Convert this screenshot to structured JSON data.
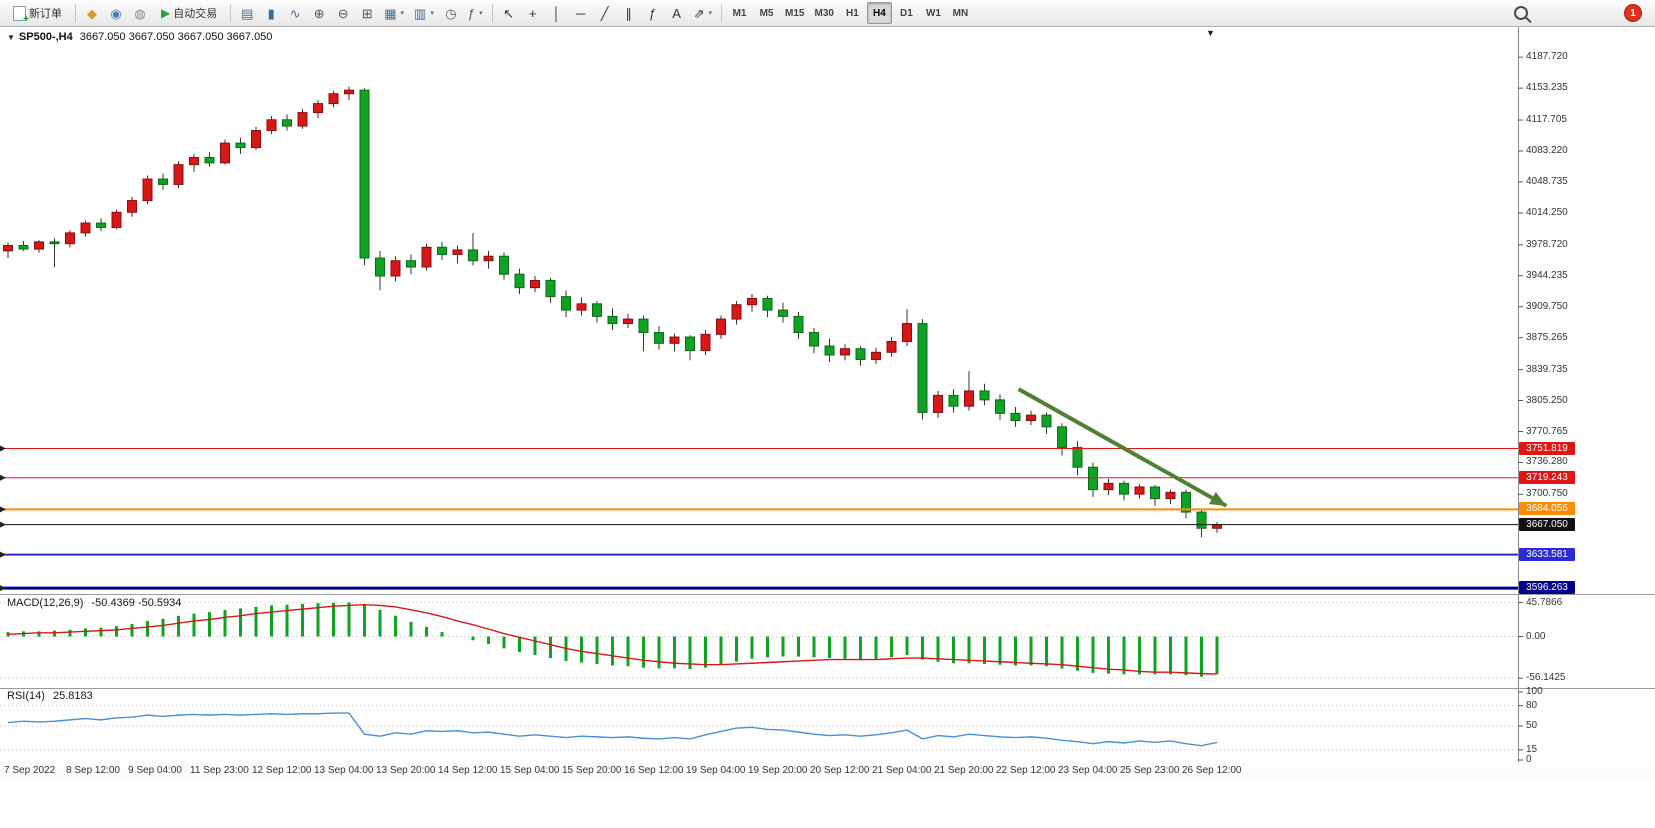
{
  "toolbar": {
    "new_order_label": "新订单",
    "autotrading_label": "自动交易",
    "notification_count": "1",
    "active_timeframe": "H4",
    "timeframes": [
      "M1",
      "M5",
      "M15",
      "M30",
      "H1",
      "H4",
      "D1",
      "W1",
      "MN"
    ],
    "market_icons": [
      {
        "name": "mql5-market-icon",
        "glyph": "◆",
        "color": "#d99c1e"
      },
      {
        "name": "community-icon",
        "glyph": "◉",
        "color": "#4a7ebb"
      },
      {
        "name": "news-icon",
        "glyph": "◍",
        "color": "#8a8a8a"
      }
    ],
    "chart_icons": [
      {
        "name": "bar-chart-icon",
        "glyph": "▤",
        "color": "#3c6e91"
      },
      {
        "name": "candlestick-chart-icon",
        "glyph": "▮",
        "color": "#3c6e91"
      },
      {
        "name": "line-chart-icon",
        "glyph": "∿",
        "color": "#3c6e91"
      },
      {
        "name": "zoom-in-icon",
        "glyph": "⊕",
        "color": "#555555"
      },
      {
        "name": "zoom-out-icon",
        "glyph": "⊖",
        "color": "#555555"
      },
      {
        "name": "tile-windows-icon",
        "glyph": "⊞",
        "color": "#555555"
      },
      {
        "name": "new-chart-icon",
        "glyph": "▦",
        "color": "#3c6e91",
        "caret": true
      },
      {
        "name": "chart-profiles-icon",
        "glyph": "▥",
        "color": "#3c6e91",
        "caret": true
      },
      {
        "name": "clock-icon",
        "glyph": "◷",
        "color": "#555555"
      },
      {
        "name": "indicator-list-icon",
        "glyph": "ƒ",
        "color": "#2e7d32",
        "caret": true
      }
    ],
    "tool_icons": [
      {
        "name": "cursor-icon",
        "glyph": "↖",
        "color": "#333333"
      },
      {
        "name": "crosshair-icon",
        "glyph": "+",
        "color": "#333333"
      },
      {
        "name": "vertical-line-icon",
        "glyph": "│",
        "color": "#333333"
      },
      {
        "name": "horizontal-line-icon",
        "glyph": "─",
        "color": "#333333"
      },
      {
        "name": "trendline-icon",
        "glyph": "╱",
        "color": "#333333"
      },
      {
        "name": "channel-icon",
        "glyph": "∥",
        "color": "#333333"
      },
      {
        "name": "fibonacci-icon",
        "glyph": "ƒ",
        "color": "#333333"
      },
      {
        "name": "text-label-icon",
        "glyph": "A",
        "color": "#333333"
      },
      {
        "name": "arrows-tool-icon",
        "glyph": "⇗",
        "color": "#333333",
        "caret": true
      }
    ]
  },
  "chart_data": {
    "type": "candlestick",
    "symbol": "SP500-",
    "timeframe": "H4",
    "header": {
      "symbol_label": "SP500-,H4",
      "ohlc_label": "3667.050 3667.050 3667.050 3667.050"
    },
    "up_color": "#d81717",
    "down_color": "#0fa224",
    "price_range": [
      3592,
      4218
    ],
    "y_axis_labels": [
      "4187.720",
      "4153.235",
      "4117.705",
      "4083.220",
      "4048.735",
      "4014.250",
      "3978.720",
      "3944.235",
      "3909.750",
      "3875.265",
      "3839.735",
      "3805.250",
      "3770.765",
      "3736.280",
      "3700.750"
    ],
    "hlines": [
      {
        "price": 3751.819,
        "label": "3751.819",
        "color": "#e01515",
        "width": 1
      },
      {
        "price": 3719.243,
        "label": "3719.243",
        "color": "#e01515",
        "width": 1
      },
      {
        "price": 3684.056,
        "label": "3684.056",
        "color": "#ff8c00",
        "width": 2
      },
      {
        "price": 3667.05,
        "label": "3667.050",
        "color": "#111111",
        "width": 1
      },
      {
        "price": 3633.581,
        "label": "3633.581",
        "color": "#2b2bd6",
        "width": 2
      },
      {
        "price": 3596.263,
        "label": "3596.263",
        "color": "#00008b",
        "width": 3
      }
    ],
    "arrow": {
      "t1": 65.2,
      "p1": 3818,
      "t2": 78.6,
      "p2": 3688,
      "color": "#4e7f32"
    },
    "candles": [
      [
        3972,
        3981,
        3964,
        3978
      ],
      [
        3978,
        3983,
        3972,
        3974
      ],
      [
        3974,
        3984,
        3970,
        3982
      ],
      [
        3982,
        3986,
        3954,
        3980
      ],
      [
        3980,
        3995,
        3976,
        3992
      ],
      [
        3992,
        4006,
        3988,
        4003
      ],
      [
        4003,
        4008,
        3994,
        3998
      ],
      [
        3998,
        4018,
        3996,
        4015
      ],
      [
        4015,
        4032,
        4010,
        4028
      ],
      [
        4028,
        4056,
        4024,
        4052
      ],
      [
        4052,
        4058,
        4040,
        4046
      ],
      [
        4046,
        4072,
        4042,
        4068
      ],
      [
        4068,
        4080,
        4060,
        4076
      ],
      [
        4076,
        4082,
        4066,
        4070
      ],
      [
        4070,
        4096,
        4068,
        4092
      ],
      [
        4092,
        4098,
        4080,
        4087
      ],
      [
        4087,
        4110,
        4084,
        4106
      ],
      [
        4106,
        4122,
        4102,
        4118
      ],
      [
        4118,
        4124,
        4106,
        4111
      ],
      [
        4111,
        4130,
        4108,
        4126
      ],
      [
        4126,
        4140,
        4120,
        4136
      ],
      [
        4136,
        4150,
        4132,
        4147
      ],
      [
        4147,
        4155,
        4140,
        4151
      ],
      [
        4151,
        4153,
        3956,
        3964
      ],
      [
        3964,
        3972,
        3928,
        3944
      ],
      [
        3944,
        3966,
        3938,
        3961
      ],
      [
        3961,
        3968,
        3946,
        3954
      ],
      [
        3954,
        3980,
        3950,
        3976
      ],
      [
        3976,
        3982,
        3962,
        3968
      ],
      [
        3968,
        3978,
        3958,
        3973
      ],
      [
        3973,
        3992,
        3956,
        3961
      ],
      [
        3961,
        3972,
        3952,
        3966
      ],
      [
        3966,
        3970,
        3940,
        3946
      ],
      [
        3946,
        3952,
        3924,
        3931
      ],
      [
        3931,
        3944,
        3926,
        3939
      ],
      [
        3939,
        3942,
        3914,
        3921
      ],
      [
        3921,
        3928,
        3898,
        3906
      ],
      [
        3906,
        3920,
        3900,
        3913
      ],
      [
        3913,
        3916,
        3892,
        3899
      ],
      [
        3899,
        3908,
        3884,
        3891
      ],
      [
        3891,
        3902,
        3886,
        3896
      ],
      [
        3896,
        3900,
        3860,
        3881
      ],
      [
        3881,
        3888,
        3862,
        3869
      ],
      [
        3869,
        3880,
        3860,
        3876
      ],
      [
        3876,
        3878,
        3850,
        3861
      ],
      [
        3861,
        3884,
        3856,
        3879
      ],
      [
        3879,
        3900,
        3874,
        3896
      ],
      [
        3896,
        3916,
        3890,
        3912
      ],
      [
        3912,
        3924,
        3904,
        3919
      ],
      [
        3919,
        3922,
        3898,
        3906
      ],
      [
        3906,
        3914,
        3892,
        3899
      ],
      [
        3899,
        3904,
        3874,
        3881
      ],
      [
        3881,
        3886,
        3858,
        3866
      ],
      [
        3866,
        3874,
        3848,
        3856
      ],
      [
        3856,
        3868,
        3850,
        3863
      ],
      [
        3863,
        3866,
        3844,
        3851
      ],
      [
        3851,
        3864,
        3846,
        3859
      ],
      [
        3859,
        3876,
        3854,
        3871
      ],
      [
        3871,
        3907,
        3866,
        3891
      ],
      [
        3891,
        3896,
        3784,
        3792
      ],
      [
        3792,
        3816,
        3786,
        3811
      ],
      [
        3811,
        3818,
        3792,
        3799
      ],
      [
        3799,
        3838,
        3794,
        3816
      ],
      [
        3816,
        3824,
        3800,
        3806
      ],
      [
        3806,
        3812,
        3784,
        3791
      ],
      [
        3791,
        3798,
        3776,
        3783
      ],
      [
        3783,
        3794,
        3778,
        3789
      ],
      [
        3789,
        3792,
        3768,
        3776
      ],
      [
        3776,
        3780,
        3744,
        3753
      ],
      [
        3753,
        3760,
        3722,
        3731
      ],
      [
        3731,
        3736,
        3698,
        3706
      ],
      [
        3706,
        3718,
        3700,
        3713
      ],
      [
        3713,
        3716,
        3694,
        3701
      ],
      [
        3701,
        3712,
        3696,
        3709
      ],
      [
        3709,
        3711,
        3688,
        3696
      ],
      [
        3696,
        3706,
        3690,
        3703
      ],
      [
        3703,
        3706,
        3674,
        3681
      ],
      [
        3681,
        3684,
        3653,
        3663
      ],
      [
        3663,
        3670,
        3658,
        3667.05
      ]
    ],
    "x_labels": [
      {
        "i": 0,
        "text": "7 Sep 2022"
      },
      {
        "i": 4,
        "text": "8 Sep 12:00"
      },
      {
        "i": 8,
        "text": "9 Sep 04:00"
      },
      {
        "i": 12,
        "text": "11 Sep 23:00"
      },
      {
        "i": 16,
        "text": "12 Sep 12:00"
      },
      {
        "i": 20,
        "text": "13 Sep 04:00"
      },
      {
        "i": 24,
        "text": "13 Sep 20:00"
      },
      {
        "i": 28,
        "text": "14 Sep 12:00"
      },
      {
        "i": 32,
        "text": "15 Sep 04:00"
      },
      {
        "i": 36,
        "text": "15 Sep 20:00"
      },
      {
        "i": 40,
        "text": "16 Sep 12:00"
      },
      {
        "i": 44,
        "text": "19 Sep 04:00"
      },
      {
        "i": 48,
        "text": "19 Sep 20:00"
      },
      {
        "i": 52,
        "text": "20 Sep 12:00"
      },
      {
        "i": 56,
        "text": "21 Sep 04:00"
      },
      {
        "i": 60,
        "text": "21 Sep 20:00"
      },
      {
        "i": 64,
        "text": "22 Sep 12:00"
      },
      {
        "i": 68,
        "text": "23 Sep 04:00"
      },
      {
        "i": 72,
        "text": "25 Sep 23:00"
      },
      {
        "i": 76,
        "text": "26 Sep 12:00"
      }
    ],
    "macd": {
      "label": "MACD(12,26,9)",
      "values_text": "-50.4369 -50.5934",
      "hist_color": "#0fa224",
      "signal_color": "#d81717",
      "range": [
        -64,
        52
      ],
      "axis_labels": [
        {
          "text": "45.7866",
          "v": 45.7866
        },
        {
          "text": "0.00",
          "v": 0
        },
        {
          "text": "-56.1425",
          "v": -56.1425
        }
      ],
      "histogram": [
        6,
        7,
        7,
        8,
        9,
        11,
        12,
        14,
        17,
        21,
        24,
        28,
        31,
        33,
        36,
        38,
        40,
        42,
        43,
        44,
        45,
        45.5,
        46,
        43,
        36,
        28,
        20,
        13,
        6,
        0,
        -5,
        -10,
        -16,
        -21,
        -25,
        -29,
        -33,
        -35,
        -37,
        -39,
        -40,
        -42,
        -43,
        -43,
        -44,
        -42,
        -38,
        -34,
        -30,
        -28,
        -27,
        -27,
        -28,
        -29,
        -30,
        -31,
        -30,
        -28,
        -25,
        -31,
        -34,
        -36,
        -36,
        -37,
        -38,
        -39,
        -39,
        -40,
        -43,
        -46,
        -49,
        -50,
        -51,
        -51,
        -51,
        -51,
        -52,
        -54,
        -50.4
      ],
      "signal": [
        3,
        4,
        5,
        5,
        6,
        7,
        8,
        9,
        11,
        13,
        15,
        18,
        21,
        23,
        26,
        28,
        31,
        33,
        35,
        37,
        39,
        41,
        42,
        43,
        42,
        40,
        36,
        32,
        27,
        21,
        16,
        10,
        4,
        -1,
        -6,
        -11,
        -16,
        -20,
        -23,
        -26,
        -29,
        -32,
        -34,
        -36,
        -37,
        -38,
        -38,
        -37,
        -36,
        -35,
        -34,
        -33,
        -32,
        -31,
        -31,
        -31,
        -31,
        -30,
        -29,
        -29,
        -30,
        -31,
        -32,
        -33,
        -34,
        -35,
        -36,
        -37,
        -38,
        -40,
        -42,
        -44,
        -45,
        -47,
        -48,
        -48,
        -49,
        -50,
        -50.59
      ]
    },
    "rsi": {
      "label": "RSI(14)",
      "value_text": "25.8183",
      "color": "#4a90d2",
      "levels": [
        80,
        50,
        15
      ],
      "axis_labels": [
        {
          "text": "100",
          "v": 100
        },
        {
          "text": "80",
          "v": 80
        },
        {
          "text": "50",
          "v": 50
        },
        {
          "text": "15",
          "v": 15
        },
        {
          "text": "0",
          "v": 0
        }
      ],
      "values": [
        55,
        57,
        56,
        57,
        59,
        61,
        59,
        62,
        63,
        66,
        64,
        66,
        67,
        66,
        67,
        66,
        67,
        68,
        67,
        68,
        68,
        69,
        69,
        38,
        35,
        40,
        38,
        43,
        42,
        43,
        40,
        41,
        38,
        35,
        37,
        35,
        33,
        35,
        34,
        33,
        34,
        32,
        31,
        33,
        31,
        37,
        42,
        47,
        48,
        45,
        44,
        41,
        38,
        36,
        37,
        35,
        37,
        40,
        44,
        31,
        36,
        34,
        38,
        36,
        34,
        33,
        34,
        32,
        29,
        27,
        24,
        27,
        25,
        28,
        26,
        28,
        24,
        21,
        25.82
      ]
    }
  }
}
